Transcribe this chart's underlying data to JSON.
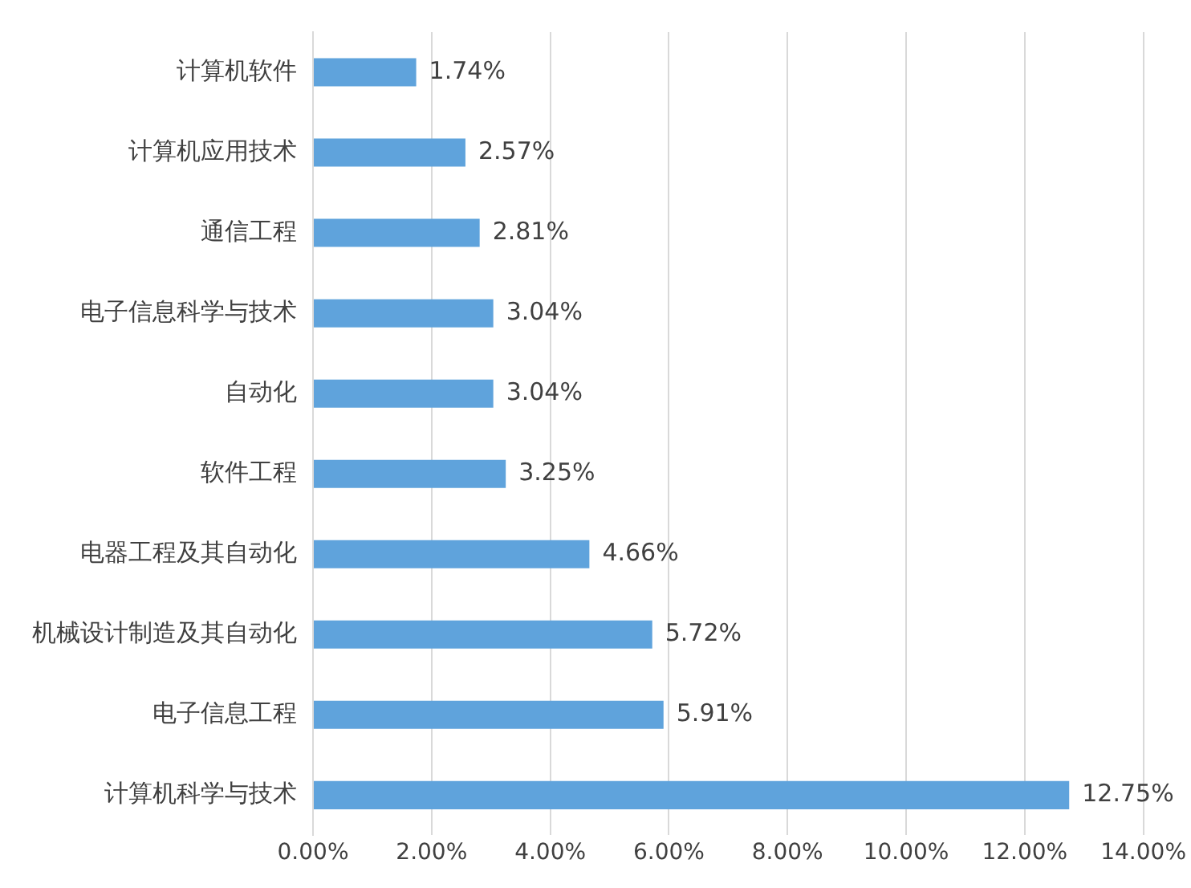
{
  "chart_data": {
    "type": "bar",
    "orientation": "horizontal",
    "categories": [
      "计算机软件",
      "计算机应用技术",
      "通信工程",
      "电子信息科学与技术",
      "自动化",
      "软件工程",
      "电器工程及其自动化",
      "机械设计制造及其自动化",
      "电子信息工程",
      "计算机科学与技术"
    ],
    "values": [
      1.74,
      2.57,
      2.81,
      3.04,
      3.04,
      3.25,
      4.66,
      5.72,
      5.91,
      12.75
    ],
    "value_labels": [
      "1.74%",
      "2.57%",
      "2.81%",
      "3.04%",
      "3.04%",
      "3.25%",
      "4.66%",
      "5.72%",
      "5.91%",
      "12.75%"
    ],
    "color": "#5fa3dc",
    "xlim": [
      0,
      14
    ],
    "xticks": [
      {
        "value": 0,
        "label": "0.00%"
      },
      {
        "value": 2,
        "label": "2.00%"
      },
      {
        "value": 4,
        "label": "4.00%"
      },
      {
        "value": 6,
        "label": "6.00%"
      },
      {
        "value": 8,
        "label": "8.00%"
      },
      {
        "value": 10,
        "label": "10.00%"
      },
      {
        "value": 12,
        "label": "12.00%"
      },
      {
        "value": 14,
        "label": "14.00%"
      }
    ],
    "grid": "x",
    "legend": false
  }
}
